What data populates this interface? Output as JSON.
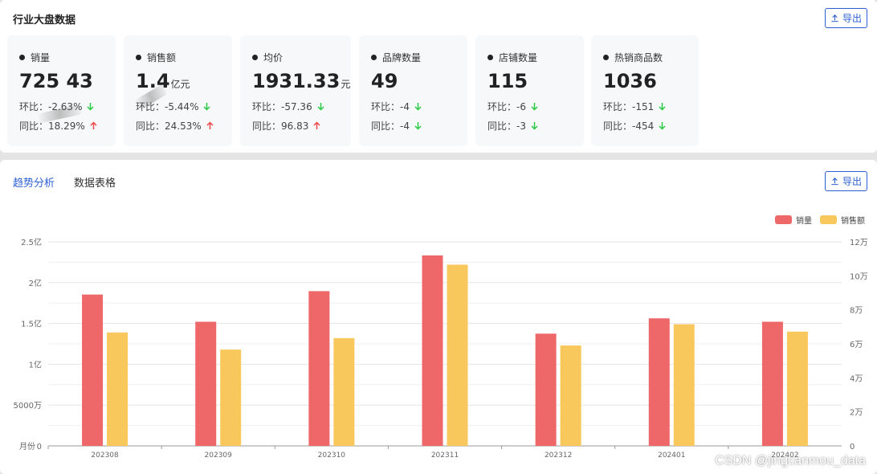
{
  "overview": {
    "title": "行业大盘数据",
    "export_label": "导出",
    "cards": [
      {
        "label": "销量",
        "value": "725 43",
        "unit": "",
        "mom_label": "环比：",
        "mom": "-2.63%",
        "mom_dir": "down",
        "yoy_label": "同比：",
        "yoy": "18.29%",
        "yoy_dir": "up"
      },
      {
        "label": "销售额",
        "value": "1.4",
        "unit": "亿元",
        "mom_label": "环比：",
        "mom": "-5.44%",
        "mom_dir": "down",
        "yoy_label": "同比：",
        "yoy": "24.53%",
        "yoy_dir": "up"
      },
      {
        "label": "均价",
        "value": "1931.33",
        "unit": "元",
        "mom_label": "环比：",
        "mom": "-57.36",
        "mom_dir": "down",
        "yoy_label": "同比：",
        "yoy": "96.83",
        "yoy_dir": "up"
      },
      {
        "label": "品牌数量",
        "value": "49",
        "unit": "",
        "mom_label": "环比：",
        "mom": "-4",
        "mom_dir": "down",
        "yoy_label": "同比：",
        "yoy": "-4",
        "yoy_dir": "down"
      },
      {
        "label": "店铺数量",
        "value": "115",
        "unit": "",
        "mom_label": "环比：",
        "mom": "-6",
        "mom_dir": "down",
        "yoy_label": "同比：",
        "yoy": "-3",
        "yoy_dir": "down"
      },
      {
        "label": "热销商品数",
        "value": "1036",
        "unit": "",
        "mom_label": "环比：",
        "mom": "-151",
        "mom_dir": "down",
        "yoy_label": "同比：",
        "yoy": "-454",
        "yoy_dir": "down"
      }
    ]
  },
  "trend": {
    "tabs": [
      {
        "label": "趋势分析",
        "active": true
      },
      {
        "label": "数据表格",
        "active": false
      }
    ],
    "export_label": "导出"
  },
  "colors": {
    "up": "#f04848",
    "down": "#29c940",
    "accent": "#2d5fd4",
    "sales_volume": "#ee686a",
    "sales_amount": "#f9c85c"
  },
  "watermark": "CSDN @jingcanmou_data",
  "chart_data": {
    "type": "bar",
    "categories": [
      "202308",
      "202309",
      "202310",
      "202311",
      "202312",
      "202401",
      "202402"
    ],
    "x_axis_name": "月份",
    "series": [
      {
        "name": "销量",
        "axis": "right",
        "values": [
          89000,
          73000,
          91000,
          112000,
          66000,
          75000,
          73000
        ]
      },
      {
        "name": "销售额",
        "axis": "left",
        "values": [
          139000000,
          118000000,
          132000000,
          222000000,
          123000000,
          149000000,
          140000000
        ]
      }
    ],
    "y_left": {
      "ticks": [
        "0",
        "5000万",
        "1亿",
        "1.5亿",
        "2亿",
        "2.5亿"
      ],
      "ylim": [
        0,
        250000000
      ]
    },
    "y_right": {
      "ticks": [
        "0",
        "2万",
        "4万",
        "6万",
        "8万",
        "10万",
        "12万"
      ],
      "ylim": [
        0,
        120000
      ]
    },
    "legend_position": "top-right",
    "grid": true
  }
}
